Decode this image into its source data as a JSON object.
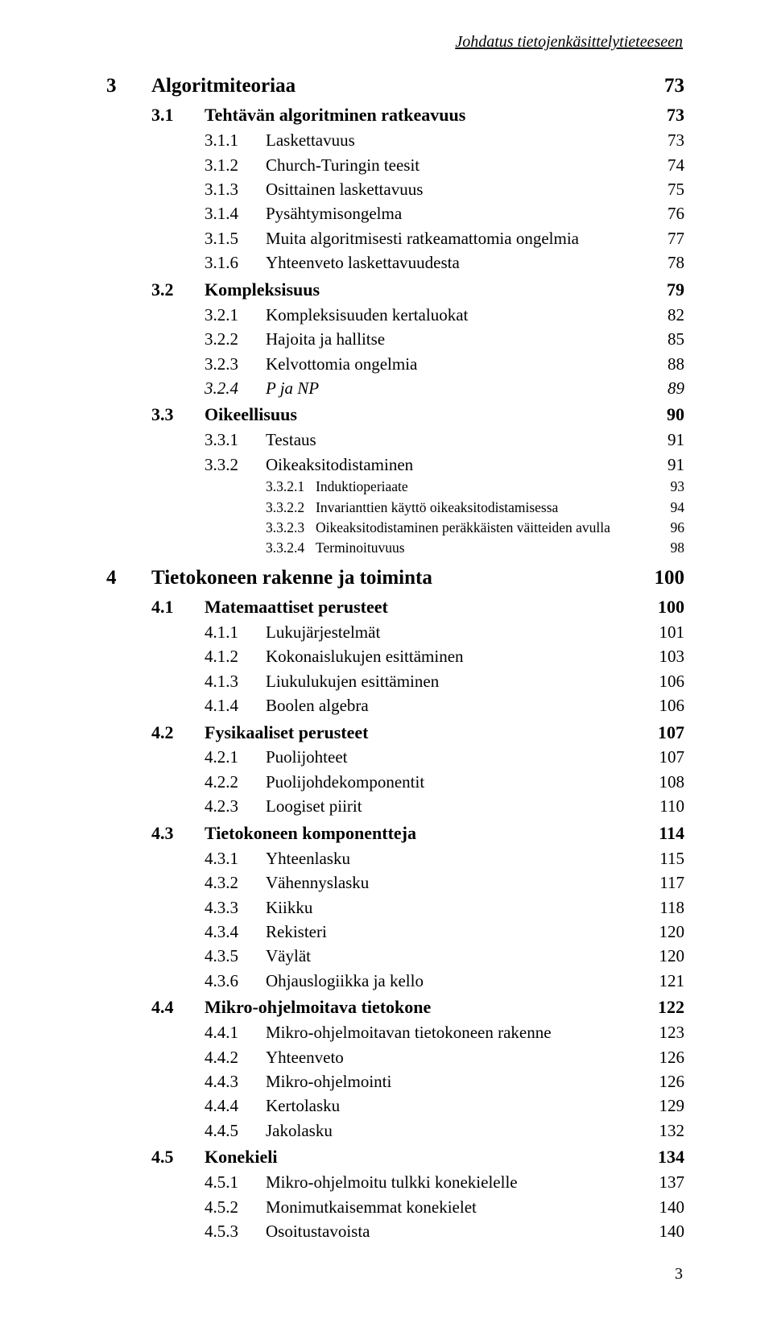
{
  "running_header": "Johdatus tietojenkäsittelytieteeseen",
  "page_number": "3",
  "toc": [
    {
      "level": 1,
      "num": "3",
      "title": "Algoritmiteoriaa",
      "page": "73"
    },
    {
      "level": 2,
      "num": "3.1",
      "title": "Tehtävän algoritminen ratkeavuus",
      "page": "73"
    },
    {
      "level": 3,
      "num": "3.1.1",
      "title": "Laskettavuus",
      "page": "73"
    },
    {
      "level": 3,
      "num": "3.1.2",
      "title": "Church-Turingin teesit",
      "page": "74"
    },
    {
      "level": 3,
      "num": "3.1.3",
      "title": "Osittainen laskettavuus",
      "page": "75"
    },
    {
      "level": 3,
      "num": "3.1.4",
      "title": "Pysähtymisongelma",
      "page": "76"
    },
    {
      "level": 3,
      "num": "3.1.5",
      "title": "Muita algoritmisesti ratkeamattomia ongelmia",
      "page": "77"
    },
    {
      "level": 3,
      "num": "3.1.6",
      "title": "Yhteenveto laskettavuudesta",
      "page": "78"
    },
    {
      "level": 2,
      "num": "3.2",
      "title": "Kompleksisuus",
      "page": "79"
    },
    {
      "level": 3,
      "num": "3.2.1",
      "title": "Kompleksisuuden kertaluokat",
      "page": "82"
    },
    {
      "level": 3,
      "num": "3.2.2",
      "title": "Hajoita ja hallitse",
      "page": "85"
    },
    {
      "level": 3,
      "num": "3.2.3",
      "title": "Kelvottomia ongelmia",
      "page": "88"
    },
    {
      "level": 3,
      "num": "3.2.4",
      "title": "P ja NP",
      "page": "89",
      "italic": true
    },
    {
      "level": 2,
      "num": "3.3",
      "title": "Oikeellisuus",
      "page": "90"
    },
    {
      "level": 3,
      "num": "3.3.1",
      "title": "Testaus",
      "page": "91"
    },
    {
      "level": 3,
      "num": "3.3.2",
      "title": "Oikeaksitodistaminen",
      "page": "91"
    },
    {
      "level": 4,
      "num": "3.3.2.1",
      "title": "Induktioperiaate",
      "page": "93"
    },
    {
      "level": 4,
      "num": "3.3.2.2",
      "title": "Invarianttien käyttö oikeaksitodistamisessa",
      "page": "94"
    },
    {
      "level": 4,
      "num": "3.3.2.3",
      "title": "Oikeaksitodistaminen peräkkäisten väitteiden avulla",
      "page": "96"
    },
    {
      "level": 4,
      "num": "3.3.2.4",
      "title": "Terminoituvuus",
      "page": "98"
    },
    {
      "level": 1,
      "num": "4",
      "title": "Tietokoneen rakenne ja toiminta",
      "page": "100"
    },
    {
      "level": 2,
      "num": "4.1",
      "title": "Matemaattiset perusteet",
      "page": "100"
    },
    {
      "level": 3,
      "num": "4.1.1",
      "title": "Lukujärjestelmät",
      "page": "101"
    },
    {
      "level": 3,
      "num": "4.1.2",
      "title": "Kokonaislukujen esittäminen",
      "page": "103"
    },
    {
      "level": 3,
      "num": "4.1.3",
      "title": "Liukulukujen esittäminen",
      "page": "106"
    },
    {
      "level": 3,
      "num": "4.1.4",
      "title": "Boolen algebra",
      "page": "106"
    },
    {
      "level": 2,
      "num": "4.2",
      "title": "Fysikaaliset perusteet",
      "page": "107"
    },
    {
      "level": 3,
      "num": "4.2.1",
      "title": "Puolijohteet",
      "page": "107"
    },
    {
      "level": 3,
      "num": "4.2.2",
      "title": "Puolijohdekomponentit",
      "page": "108"
    },
    {
      "level": 3,
      "num": "4.2.3",
      "title": "Loogiset piirit",
      "page": "110"
    },
    {
      "level": 2,
      "num": "4.3",
      "title": "Tietokoneen komponentteja",
      "page": "114"
    },
    {
      "level": 3,
      "num": "4.3.1",
      "title": "Yhteenlasku",
      "page": "115"
    },
    {
      "level": 3,
      "num": "4.3.2",
      "title": "Vähennyslasku",
      "page": "117"
    },
    {
      "level": 3,
      "num": "4.3.3",
      "title": "Kiikku",
      "page": "118"
    },
    {
      "level": 3,
      "num": "4.3.4",
      "title": "Rekisteri",
      "page": "120"
    },
    {
      "level": 3,
      "num": "4.3.5",
      "title": "Väylät",
      "page": "120"
    },
    {
      "level": 3,
      "num": "4.3.6",
      "title": "Ohjauslogiikka ja kello",
      "page": "121"
    },
    {
      "level": 2,
      "num": "4.4",
      "title": "Mikro-ohjelmoitava tietokone",
      "page": "122"
    },
    {
      "level": 3,
      "num": "4.4.1",
      "title": "Mikro-ohjelmoitavan tietokoneen rakenne",
      "page": "123"
    },
    {
      "level": 3,
      "num": "4.4.2",
      "title": "Yhteenveto",
      "page": "126"
    },
    {
      "level": 3,
      "num": "4.4.3",
      "title": "Mikro-ohjelmointi",
      "page": "126"
    },
    {
      "level": 3,
      "num": "4.4.4",
      "title": "Kertolasku",
      "page": "129"
    },
    {
      "level": 3,
      "num": "4.4.5",
      "title": "Jakolasku",
      "page": "132"
    },
    {
      "level": 2,
      "num": "4.5",
      "title": "Konekieli",
      "page": "134"
    },
    {
      "level": 3,
      "num": "4.5.1",
      "title": "Mikro-ohjelmoitu tulkki konekielelle",
      "page": "137"
    },
    {
      "level": 3,
      "num": "4.5.2",
      "title": "Monimutkaisemmat konekielet",
      "page": "140"
    },
    {
      "level": 3,
      "num": "4.5.3",
      "title": "Osoitustavoista",
      "page": "140"
    }
  ]
}
